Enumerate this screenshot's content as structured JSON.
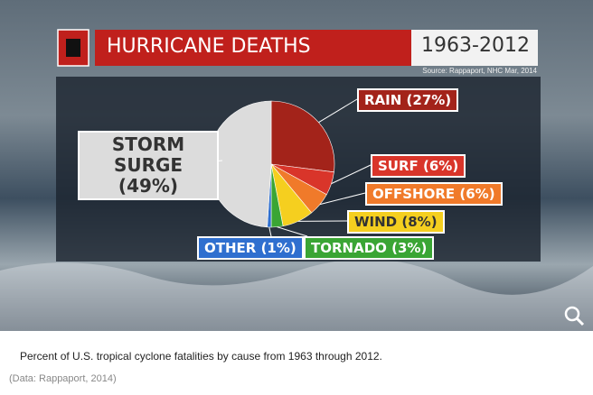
{
  "chart_data": {
    "type": "pie",
    "title": "HURRICANE DEATHS",
    "subtitle": "1963-2012",
    "source": "Source: Rappaport, NHC Mar, 2014",
    "categories": [
      "RAIN",
      "SURF",
      "OFFSHORE",
      "WIND",
      "TORNADO",
      "OTHER",
      "STORM SURGE"
    ],
    "values": [
      27,
      6,
      6,
      8,
      3,
      1,
      49
    ],
    "value_labels": [
      "(27%)",
      "(6%)",
      "(6%)",
      "(8%)",
      "(3%)",
      "(1%)",
      "(49%)"
    ],
    "colors": [
      "#a3231a",
      "#d9352a",
      "#f07a2a",
      "#f5cf1f",
      "#3aa534",
      "#2f6fcf",
      "#dcdcdc"
    ]
  },
  "caption": "Percent of U.S. tropical cyclone fatalities by cause from 1963 through 2012.",
  "credit": "(Data: Rappaport, 2014)"
}
